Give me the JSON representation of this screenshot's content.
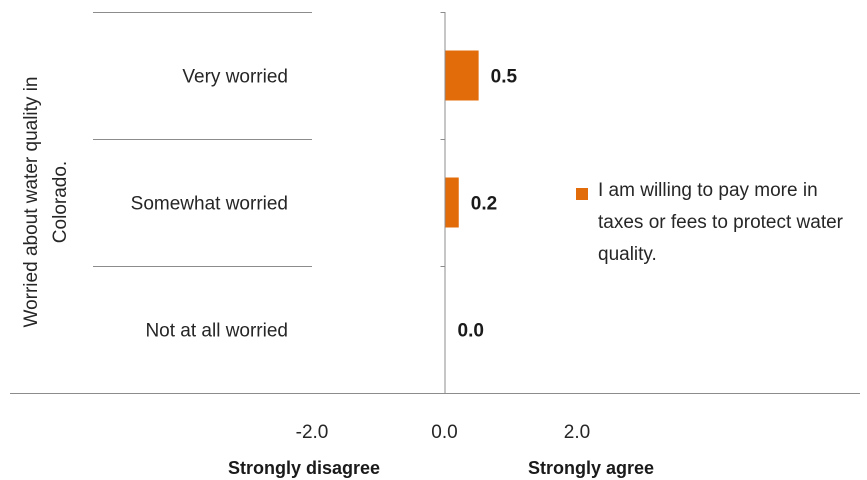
{
  "chart_data": {
    "type": "bar",
    "orientation": "horizontal",
    "categories": [
      "Very worried",
      "Somewhat worried",
      "Not at all worried"
    ],
    "series": [
      {
        "name": "I am willing to pay more in taxes or fees to protect water quality.",
        "values": [
          0.5,
          0.2,
          0.0
        ],
        "color": "#E36C0A"
      }
    ],
    "data_labels": [
      "0.5",
      "0.2",
      "0.0"
    ],
    "x_ticks": [
      "-2.0",
      "0.0",
      "2.0"
    ],
    "xlim": [
      -2.0,
      2.0
    ],
    "ylabel": "Worried about water quality in Colorado.",
    "x_end_labels": {
      "left": "Strongly disagree",
      "right": "Strongly agree"
    },
    "legend_position": "right",
    "grid": false
  }
}
